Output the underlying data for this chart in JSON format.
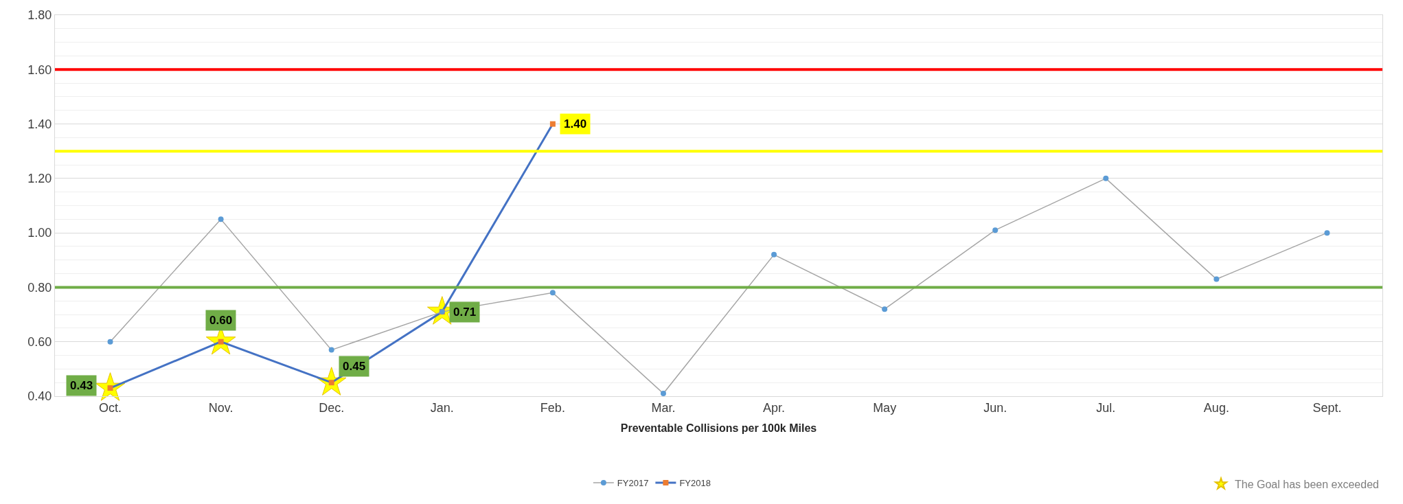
{
  "chart_data": {
    "type": "line",
    "xlabel": "Preventable Collisions per 100k Miles",
    "categories": [
      "Oct.",
      "Nov.",
      "Dec.",
      "Jan.",
      "Feb.",
      "Mar.",
      "Apr.",
      "May",
      "Jun.",
      "Jul.",
      "Aug.",
      "Sept."
    ],
    "series": [
      {
        "name": "FY2017",
        "color": "#a5a5a5",
        "marker": "circle",
        "colors": [
          "#5b9bd5",
          "#5b9bd5",
          "#5b9bd5",
          "#5b9bd5",
          "#5b9bd5",
          "#5b9bd5",
          "#5b9bd5",
          "#5b9bd5",
          "#5b9bd5",
          "#5b9bd5",
          "#5b9bd5",
          "#5b9bd5"
        ],
        "values": [
          0.6,
          1.05,
          0.57,
          0.71,
          0.78,
          0.41,
          0.92,
          0.72,
          1.01,
          1.2,
          0.83,
          1.0
        ]
      },
      {
        "name": "FY2018",
        "color": "#4472c4",
        "marker": "square",
        "colors": [
          "#ed7d31",
          "#ed7d31",
          "#ed7d31",
          "#ed7d31",
          "#ed7d31",
          null,
          null,
          null,
          null,
          null,
          null,
          null
        ],
        "values": [
          0.43,
          0.6,
          0.45,
          0.71,
          1.4,
          null,
          null,
          null,
          null,
          null,
          null,
          null
        ],
        "value_labels": [
          "0.43",
          "0.60",
          "0.45",
          "0.71",
          "1.40",
          null,
          null,
          null,
          null,
          null,
          null,
          null
        ]
      },
      {
        "name": "The Goal has been exceeded",
        "type": "scatter",
        "color": "#ffff00",
        "marker": "star",
        "values": [
          0.43,
          0.6,
          0.45,
          0.71,
          null,
          null,
          null,
          null,
          null,
          null,
          null,
          null
        ]
      }
    ],
    "ylim": [
      0.4,
      1.8
    ],
    "yticks": [
      {
        "value": 0.4,
        "label": "0.40"
      },
      {
        "value": 0.6,
        "label": "0.60"
      },
      {
        "value": 0.8,
        "label": "0.80"
      },
      {
        "value": 1.0,
        "label": "1.00"
      },
      {
        "value": 1.2,
        "label": "1.20"
      },
      {
        "value": 1.4,
        "label": "1.40"
      },
      {
        "value": 1.6,
        "label": "1.60"
      },
      {
        "value": 1.8,
        "label": "1.80"
      }
    ],
    "ref_lines": [
      {
        "axis": "y",
        "value": 1.6,
        "color": "#ff0000"
      },
      {
        "axis": "y",
        "value": 1.3,
        "color": "#ffff00"
      },
      {
        "axis": "y",
        "value": 0.8,
        "color": "#70ad47"
      }
    ],
    "grid": "y",
    "legend": "bottom"
  }
}
